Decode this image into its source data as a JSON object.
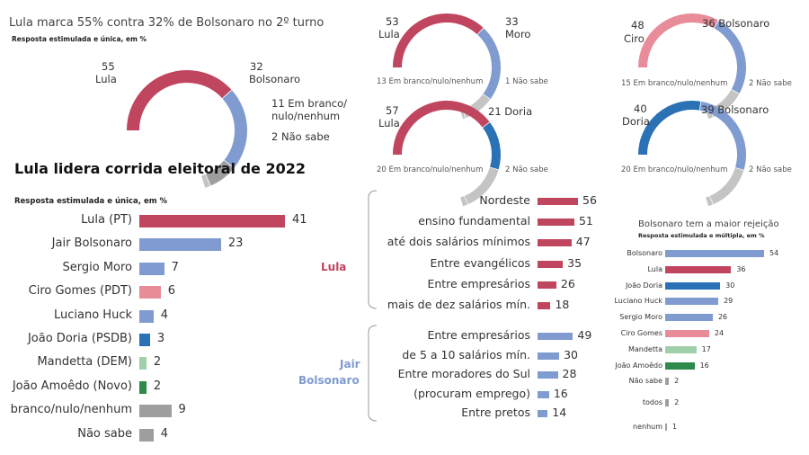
{
  "colors": {
    "lula": "#c0455e",
    "bolsonaro": "#7f9bd0",
    "moro": "#7f9bd0",
    "ciro": "#e88c9a",
    "doria": "#2a72b5",
    "grey": "#9e9e9e",
    "lightgrey": "#c4c4c4",
    "mandetta": "#9fd0a9",
    "amoedo": "#2e8a4c",
    "huck": "#7f9bd0"
  },
  "gauges": {
    "main": {
      "title": "Lula marca 55% contra 32% de Bolsonaro no 2º turno",
      "subtitle": "Resposta estimulada e única, em %",
      "label_a_value": "55",
      "label_a_name": "Lula",
      "label_b_value": "32",
      "label_b_name": "Bolsonaro",
      "label_c": "11 Em branco/",
      "label_c2": "nulo/nenhum",
      "label_d": "2 Não sabe"
    },
    "g1": {
      "a_value": "53",
      "a_name": "Lula",
      "b_value": "33",
      "b_name": "Moro",
      "cap_left": "13 Em branco/nulo/nenhum",
      "cap_right": "1 Não sabe"
    },
    "g2": {
      "a_value": "48",
      "a_name": "Ciro",
      "b_label": "36 Bolsonaro",
      "cap_left": "15 Em branco/nulo/nenhum",
      "cap_right": "2 Não sabe"
    },
    "g3": {
      "a_value": "57",
      "a_name": "Lula",
      "b_label": "21 Doria",
      "cap_left": "20 Em branco/nulo/nenhum",
      "cap_right": "2 Não sabe"
    },
    "g4": {
      "a_value": "40",
      "a_name": "Doria",
      "b_label": "39 Bolsonaro",
      "cap_left": "20 Em branco/nulo/nenhum",
      "cap_right": "2 Não sabe"
    }
  },
  "first_round": {
    "title": "Lula lidera corrida eleitoral de 2022",
    "subtitle": "Resposta estimulada e única, em %"
  },
  "segments": {
    "lula_label": "Lula",
    "jair_label_1": "Jair",
    "jair_label_2": "Bolsonaro"
  },
  "rejection": {
    "title": "Bolsonaro tem a maior rejeição",
    "subtitle": "Resposta estimulada e múltipla, em %"
  },
  "chart_data": [
    {
      "type": "pie",
      "title": "Lula marca 55% contra 32% de Bolsonaro no 2º turno",
      "subtitle": "Resposta estimulada e única, em %",
      "categories": [
        "Lula",
        "Bolsonaro",
        "Em branco/nulo/nenhum",
        "Não sabe"
      ],
      "values": [
        55,
        32,
        11,
        2
      ]
    },
    {
      "type": "pie",
      "categories": [
        "Lula",
        "Moro",
        "Em branco/nulo/nenhum",
        "Não sabe"
      ],
      "values": [
        53,
        33,
        13,
        1
      ]
    },
    {
      "type": "pie",
      "categories": [
        "Ciro",
        "Bolsonaro",
        "Em branco/nulo/nenhum",
        "Não sabe"
      ],
      "values": [
        48,
        36,
        15,
        2
      ]
    },
    {
      "type": "pie",
      "categories": [
        "Lula",
        "Doria",
        "Em branco/nulo/nenhum",
        "Não sabe"
      ],
      "values": [
        57,
        21,
        20,
        2
      ]
    },
    {
      "type": "pie",
      "categories": [
        "Doria",
        "Bolsonaro",
        "Em branco/nulo/nenhum",
        "Não sabe"
      ],
      "values": [
        40,
        39,
        20,
        2
      ]
    },
    {
      "type": "bar",
      "title": "Lula lidera corrida eleitoral de 2022",
      "subtitle": "Resposta estimulada e única, em %",
      "categories": [
        "Lula (PT)",
        "Jair Bolsonaro",
        "Sergio Moro",
        "Ciro Gomes (PDT)",
        "Luciano Huck",
        "João Doria (PSDB)",
        "Mandetta (DEM)",
        "João Amoêdo (Novo)",
        "branco/nulo/nenhum",
        "Não sabe"
      ],
      "values": [
        41,
        23,
        7,
        6,
        4,
        3,
        2,
        2,
        9,
        4
      ]
    },
    {
      "type": "bar",
      "series_name": "Lula",
      "categories": [
        "Nordeste",
        "ensino fundamental",
        "até dois salários mínimos",
        "Entre evangélicos",
        "Entre empresários",
        "mais de dez salários mín."
      ],
      "values": [
        56,
        51,
        47,
        35,
        26,
        18
      ]
    },
    {
      "type": "bar",
      "series_name": "Jair Bolsonaro",
      "categories": [
        "Entre empresários",
        "de 5 a 10 salários mín.",
        "Entre moradores do Sul",
        "(procuram emprego)",
        "Entre pretos"
      ],
      "values": [
        49,
        30,
        28,
        16,
        14
      ]
    },
    {
      "type": "bar",
      "title": "Bolsonaro tem a maior rejeição",
      "subtitle": "Resposta estimulada e múltipla, em %",
      "categories": [
        "Bolsonaro",
        "Lula",
        "João Doria",
        "Luciano Huck",
        "Sergio Moro",
        "Ciro Gomes",
        "Mandetta",
        "João Amoêdo",
        "Não sabe",
        "todos",
        "nenhum"
      ],
      "values": [
        54,
        36,
        30,
        29,
        26,
        24,
        17,
        16,
        2,
        2,
        1
      ]
    }
  ]
}
